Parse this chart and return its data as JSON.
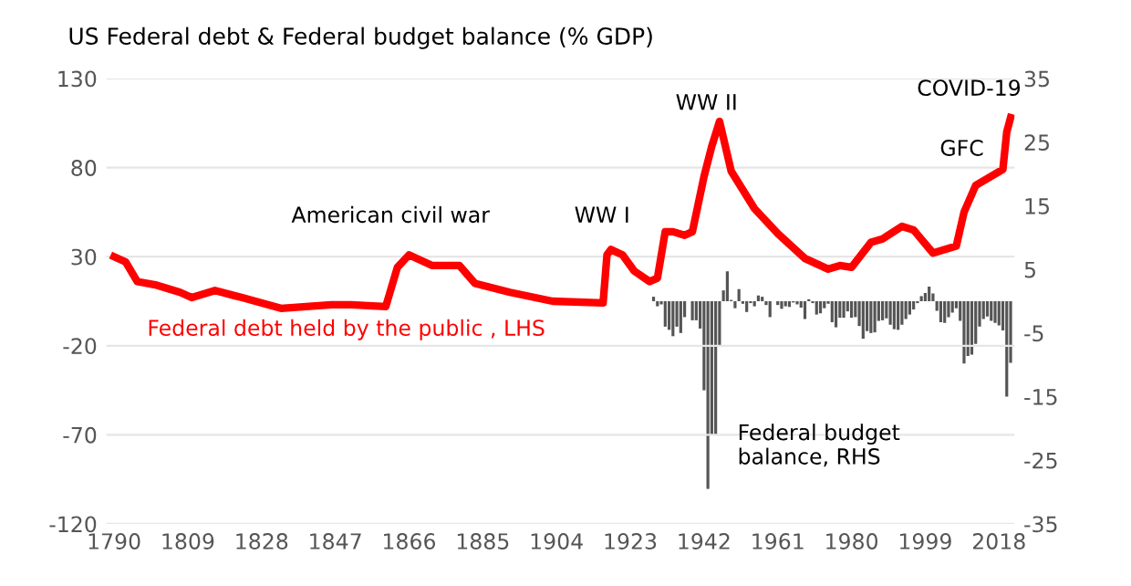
{
  "chart_data": {
    "type": "line",
    "title": "US Federal debt & Federal budget balance (% GDP)",
    "series": [
      {
        "name": "Federal debt held by the public , LHS",
        "color": "#ff0000",
        "x": [
          1790,
          1793,
          1796,
          1801,
          1807,
          1810,
          1816,
          1823,
          1833,
          1846,
          1851,
          1860,
          1863,
          1866,
          1872,
          1879,
          1883,
          1892,
          1903,
          1916,
          1917,
          1918,
          1921,
          1924,
          1928,
          1930,
          1932,
          1934,
          1937,
          1939,
          1942,
          1944,
          1946,
          1949,
          1955,
          1961,
          1968,
          1974,
          1977,
          1980,
          1985,
          1988,
          1993,
          1996,
          2001,
          2007,
          2009,
          2012,
          2019,
          2020,
          2021
        ],
        "values": [
          30,
          27,
          16,
          14,
          10,
          7,
          11,
          7,
          1,
          3,
          3,
          2,
          24,
          31,
          25,
          25,
          15,
          10,
          5,
          4,
          31,
          34,
          31,
          22,
          16,
          18,
          44,
          44,
          42,
          44,
          75,
          92,
          106,
          78,
          57,
          43,
          29,
          23,
          25,
          24,
          38,
          40,
          47,
          45,
          32,
          36,
          55,
          70,
          79,
          100,
          108
        ]
      },
      {
        "name": "Federal budget\nbalance, RHS",
        "color": "#555555",
        "type": "bar",
        "axis": "y2",
        "x": [
          1929,
          1930,
          1931,
          1932,
          1933,
          1934,
          1935,
          1936,
          1937,
          1938,
          1939,
          1940,
          1941,
          1942,
          1943,
          1944,
          1945,
          1946,
          1947,
          1948,
          1949,
          1950,
          1951,
          1952,
          1953,
          1954,
          1955,
          1956,
          1957,
          1958,
          1959,
          1960,
          1961,
          1962,
          1963,
          1964,
          1965,
          1966,
          1967,
          1968,
          1969,
          1970,
          1971,
          1972,
          1973,
          1974,
          1975,
          1976,
          1977,
          1978,
          1979,
          1980,
          1981,
          1982,
          1983,
          1984,
          1985,
          1986,
          1987,
          1988,
          1989,
          1990,
          1991,
          1992,
          1993,
          1994,
          1995,
          1996,
          1997,
          1998,
          1999,
          2000,
          2001,
          2002,
          2003,
          2004,
          2005,
          2006,
          2007,
          2008,
          2009,
          2010,
          2011,
          2012,
          2013,
          2014,
          2015,
          2016,
          2017,
          2018,
          2019,
          2020,
          2021
        ],
        "values": [
          0.7,
          -0.8,
          -0.5,
          -4,
          -4.5,
          -5.5,
          -4,
          -5,
          -2.5,
          null,
          -3,
          -3,
          -4.3,
          -14,
          -29.5,
          -21,
          -21,
          -7,
          1.7,
          4.7,
          0.2,
          -1.1,
          1.9,
          -0.4,
          -1.7,
          -0.3,
          -0.8,
          0.9,
          0.7,
          -0.6,
          -2.5,
          null,
          -0.6,
          -1.2,
          -0.8,
          -0.9,
          -0.2,
          -0.5,
          -1,
          -2.8,
          0.3,
          -0.3,
          -2.1,
          -1.9,
          -1.1,
          -0.4,
          -3.3,
          -4.1,
          -2.6,
          -2.6,
          -1.6,
          -2.6,
          -2.5,
          -3.9,
          -5.9,
          -4.7,
          -5,
          -4.9,
          -3.1,
          -3,
          -2.7,
          -3.7,
          -4.4,
          -4.5,
          -3.7,
          -2.8,
          -2.1,
          -1.3,
          -0.3,
          0.8,
          1.3,
          2.3,
          1.2,
          -1.5,
          -3.3,
          -3.4,
          -2.5,
          -1.8,
          -1.1,
          -3.1,
          -9.8,
          -8.6,
          -8.4,
          -6.7,
          -4,
          -2.8,
          -2.4,
          -3.1,
          -3.4,
          -3.8,
          -4.6,
          -15,
          -9.7
        ]
      }
    ],
    "xlim": [
      1788,
      2022
    ],
    "xticks": [
      1790,
      1809,
      1828,
      1847,
      1866,
      1885,
      1904,
      1923,
      1942,
      1961,
      1980,
      1999,
      2018
    ],
    "ylim": [
      -120,
      130
    ],
    "yticks": [
      -120,
      -70,
      -20,
      30,
      80,
      130
    ],
    "y2lim": [
      -35,
      35
    ],
    "y2ticks": [
      -35,
      -25,
      -15,
      -5,
      5,
      15,
      25,
      35
    ],
    "grid": "y",
    "legend": false,
    "annotations": [
      "American civil war",
      "WW I",
      "WW II",
      "GFC",
      "COVID-19"
    ]
  }
}
